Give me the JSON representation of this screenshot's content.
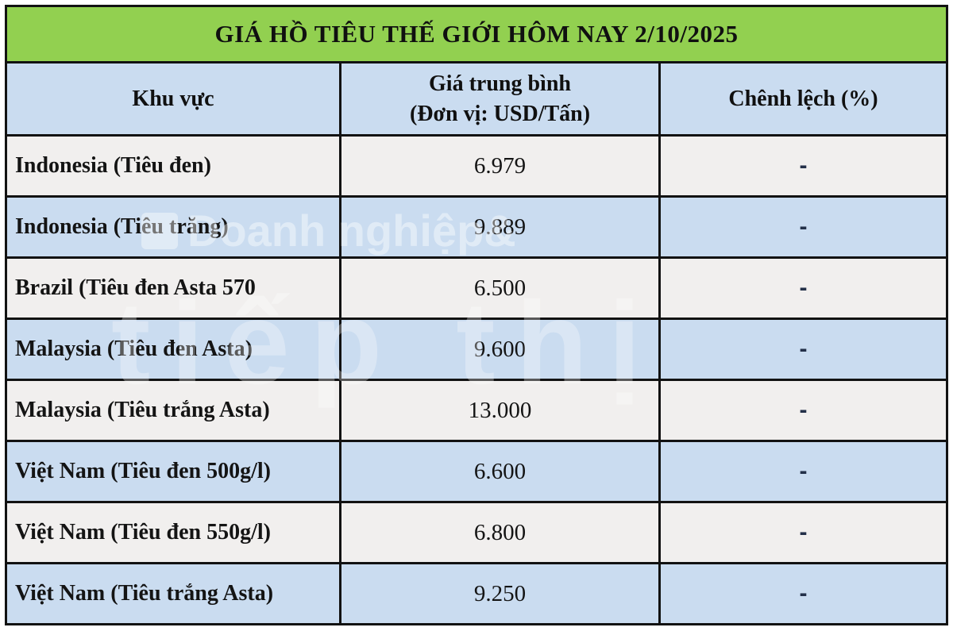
{
  "chart_data": {
    "type": "table",
    "title": "GIÁ HỒ TIÊU THẾ GIỚI HÔM NAY 2/10/2025",
    "columns": [
      "Khu vực",
      "Giá trung bình (Đơn vị: USD/Tấn)",
      "Chênh lệch (%)"
    ],
    "rows": [
      {
        "region": "Indonesia (Tiêu đen)",
        "price": "6.979",
        "change": "-"
      },
      {
        "region": "Indonesia (Tiêu trăng)",
        "price": "9.889",
        "change": "-"
      },
      {
        "region": "Brazil (Tiêu đen Asta 570",
        "price": "6.500",
        "change": "-"
      },
      {
        "region": "Malaysia (Tiêu đen Asta)",
        "price": "9.600",
        "change": "-"
      },
      {
        "region": "Malaysia (Tiêu trắng Asta)",
        "price": "13.000",
        "change": "-"
      },
      {
        "region": "Việt Nam (Tiêu đen 500g/l)",
        "price": "6.600",
        "change": "-"
      },
      {
        "region": "Việt Nam (Tiêu đen 550g/l)",
        "price": "6.800",
        "change": "-"
      },
      {
        "region": "Việt Nam (Tiêu trắng Asta)",
        "price": "9.250",
        "change": "-"
      }
    ]
  },
  "header_lines": {
    "price_line1": "Giá trung bình",
    "price_line2": "(Đơn vị: USD/Tấn)"
  },
  "watermark": {
    "brand_small": "Doanh nghiệp&",
    "brand_large": "tiếp thị"
  },
  "colors": {
    "banner_green": "#92D050",
    "row_blue": "#CADCF0",
    "row_gray": "#F1EFEE",
    "border": "#121212",
    "dash": "#233049"
  }
}
